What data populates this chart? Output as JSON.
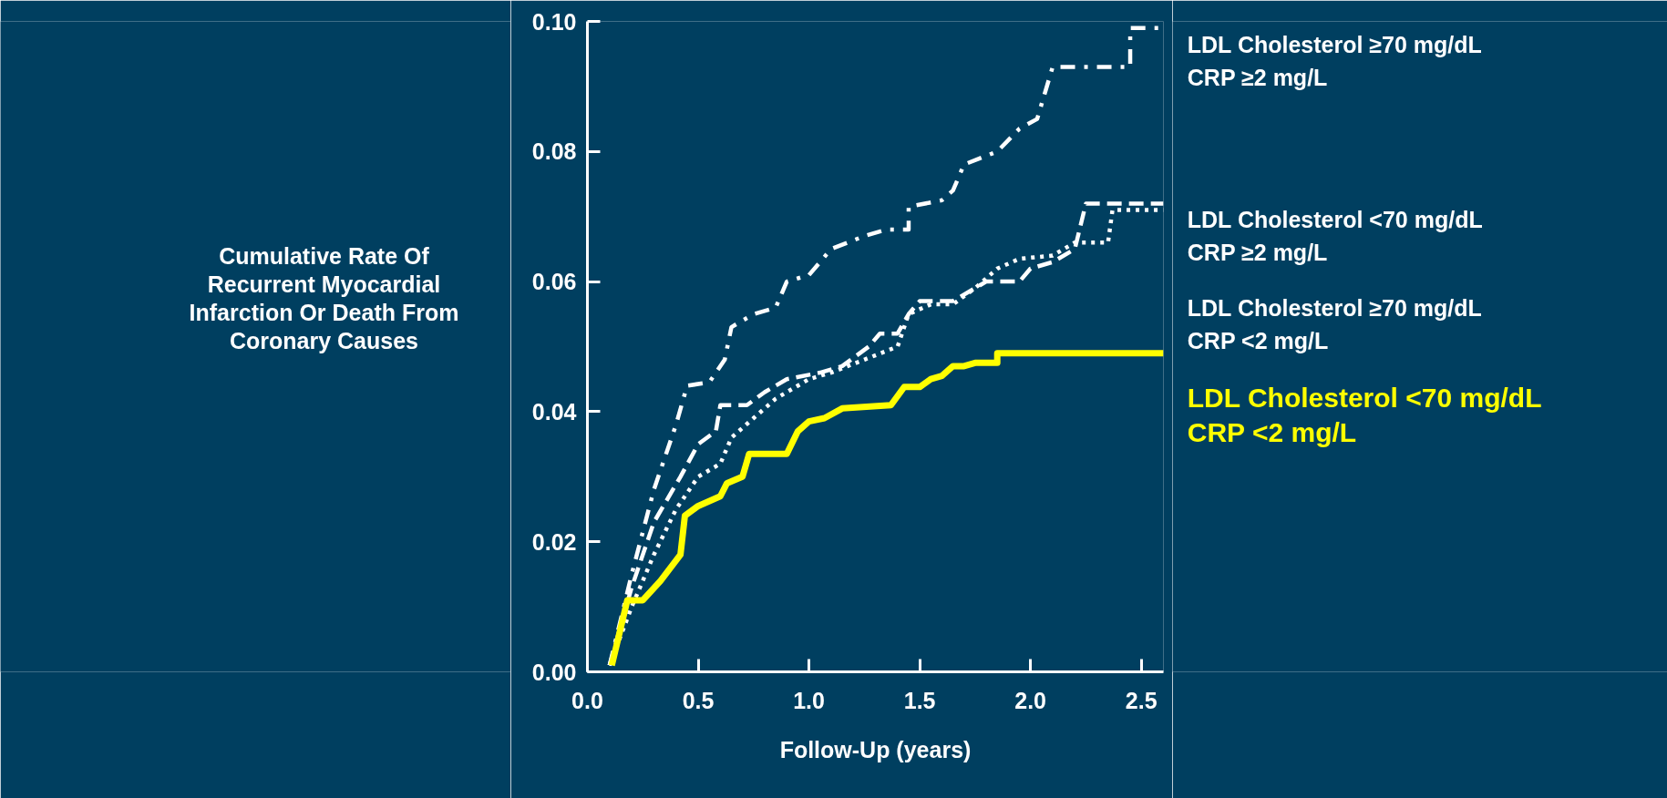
{
  "chart_data": {
    "type": "line",
    "xlabel": "Follow-Up (years)",
    "ylabel": "Cumulative Rate Of\nRecurrent Myocardial\nInfarction Or Death From\nCoronary Causes",
    "xlim": [
      0,
      2.6
    ],
    "ylim": [
      0,
      0.1
    ],
    "xticks": [
      {
        "value": 0,
        "label": "0.0"
      },
      {
        "value": 0.5,
        "label": "0.5"
      },
      {
        "value": 1,
        "label": "1.0"
      },
      {
        "value": 1.5,
        "label": "1.5"
      },
      {
        "value": 2,
        "label": "2.0"
      },
      {
        "value": 2.5,
        "label": "2.5"
      }
    ],
    "yticks": [
      {
        "value": 0,
        "label": "0.00"
      },
      {
        "value": 0.02,
        "label": "0.02"
      },
      {
        "value": 0.04,
        "label": "0.04"
      },
      {
        "value": 0.06,
        "label": "0.06"
      },
      {
        "value": 0.08,
        "label": "0.08"
      },
      {
        "value": 0.1,
        "label": "0.10"
      }
    ],
    "grid": false,
    "marker": "none",
    "series": [
      {
        "name": "LDL Cholesterol ≥70 mg/dL\nCRP ≥2 mg/L",
        "color": "#ffffff",
        "line_style": "dashdot",
        "x": [
          0.1,
          0.2,
          0.3,
          0.4,
          0.45,
          0.55,
          0.62,
          0.65,
          0.75,
          0.85,
          0.9,
          1.0,
          1.1,
          1.25,
          1.35,
          1.45,
          1.45,
          1.6,
          1.65,
          1.7,
          1.85,
          1.95,
          2.03,
          2.1,
          2.25,
          2.45,
          2.45,
          2.6
        ],
        "values": [
          0.001,
          0.015,
          0.028,
          0.038,
          0.044,
          0.0445,
          0.048,
          0.053,
          0.055,
          0.056,
          0.06,
          0.061,
          0.065,
          0.067,
          0.068,
          0.068,
          0.0715,
          0.0725,
          0.074,
          0.078,
          0.08,
          0.0835,
          0.085,
          0.093,
          0.093,
          0.093,
          0.099,
          0.099
        ]
      },
      {
        "name": "LDL Cholesterol <70 mg/dL\nCRP ≥2 mg/L",
        "color": "#ffffff",
        "line_style": "dashed",
        "x": [
          0.1,
          0.2,
          0.3,
          0.42,
          0.5,
          0.58,
          0.6,
          0.72,
          0.8,
          0.9,
          1.05,
          1.15,
          1.27,
          1.32,
          1.4,
          1.45,
          1.5,
          1.65,
          1.8,
          1.95,
          2.0,
          2.1,
          2.2,
          2.25,
          2.6
        ],
        "values": [
          0.001,
          0.013,
          0.023,
          0.03,
          0.035,
          0.037,
          0.041,
          0.041,
          0.043,
          0.045,
          0.046,
          0.047,
          0.05,
          0.052,
          0.052,
          0.055,
          0.057,
          0.057,
          0.06,
          0.06,
          0.062,
          0.063,
          0.065,
          0.072,
          0.072
        ]
      },
      {
        "name": "LDL Cholesterol ≥70 mg/dL\nCRP <2 mg/L",
        "color": "#ffffff",
        "line_style": "dotted",
        "x": [
          0.1,
          0.2,
          0.3,
          0.4,
          0.5,
          0.6,
          0.65,
          0.75,
          0.85,
          1.0,
          1.1,
          1.25,
          1.4,
          1.45,
          1.55,
          1.65,
          1.75,
          1.85,
          1.95,
          2.1,
          2.2,
          2.35,
          2.37,
          2.6
        ],
        "values": [
          0.001,
          0.01,
          0.018,
          0.025,
          0.03,
          0.032,
          0.036,
          0.039,
          0.042,
          0.045,
          0.046,
          0.048,
          0.05,
          0.055,
          0.0565,
          0.0565,
          0.059,
          0.062,
          0.0635,
          0.064,
          0.066,
          0.066,
          0.071,
          0.071
        ]
      },
      {
        "name": "LDL Cholesterol <70 mg/dL\nCRP <2 mg/L",
        "color": "#ffff00",
        "line_style": "solid",
        "x": [
          0.11,
          0.18,
          0.25,
          0.33,
          0.42,
          0.44,
          0.5,
          0.6,
          0.63,
          0.7,
          0.73,
          0.9,
          0.95,
          1.0,
          1.07,
          1.15,
          1.37,
          1.43,
          1.5,
          1.55,
          1.6,
          1.65,
          1.7,
          1.75,
          1.85,
          1.85,
          2.6
        ],
        "values": [
          0.001,
          0.011,
          0.011,
          0.014,
          0.018,
          0.024,
          0.0255,
          0.027,
          0.029,
          0.03,
          0.0335,
          0.0335,
          0.037,
          0.0385,
          0.039,
          0.0405,
          0.041,
          0.0438,
          0.0438,
          0.045,
          0.0455,
          0.047,
          0.047,
          0.0475,
          0.0475,
          0.049,
          0.049
        ]
      }
    ]
  }
}
